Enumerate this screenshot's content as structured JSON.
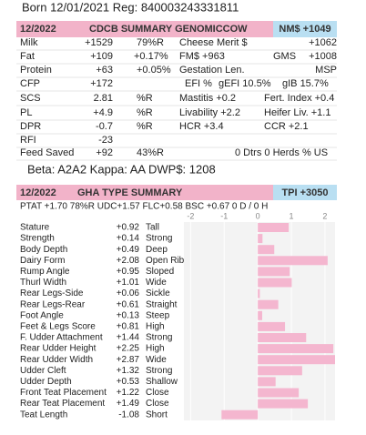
{
  "header": {
    "born": "Born 12/01/2021 Reg: 840003243331811"
  },
  "cdcb": {
    "date": "12/2022",
    "title": "CDCB SUMMARY GENOMICCOW",
    "nm": "NM$ +1049",
    "rows": [
      [
        "Milk",
        "+1529",
        "79%R",
        "Cheese Merit $",
        "+1062"
      ],
      [
        "Fat",
        "+109",
        "+0.17%",
        "FM$ +963",
        "GMS",
        "+1008"
      ],
      [
        "Protein",
        "+63",
        "+0.05%",
        "Gestation Len.",
        "MSP"
      ],
      [
        "CFP",
        "+172",
        "EFI %",
        "gEFI 10.5%",
        "gIB 15.7%"
      ],
      [
        "SCS",
        "2.81",
        "%R",
        "Mastitis +0.2",
        "Fert. Index +0.4"
      ],
      [
        "PL",
        "+4.9",
        "%R",
        "Livability +2.2",
        "Heifer Liv. +1.1"
      ],
      [
        "DPR",
        "-0.7",
        "%R",
        "HCR +3.4",
        "CCR +2.1"
      ],
      [
        "RFI",
        "-23"
      ],
      [
        "Feed Saved",
        "+92",
        "43%R",
        "0 Dtrs  0 Herds  % US"
      ]
    ]
  },
  "genotype": "Beta: A2A2   Kappa: AA   DWP$: 1208",
  "type": {
    "date": "12/2022",
    "title": "GHA TYPE SUMMARY",
    "tpi": "TPI +3050",
    "ptat": "PTAT +1.70  78%R  UDC+1.57  FLC+0.58  BSC +0.67   0 D / 0 H",
    "xlim": [
      -2.2,
      2.3
    ],
    "xticks": [
      -2,
      -1,
      0,
      1,
      2
    ],
    "traits": [
      {
        "name": "Stature",
        "value": 0.92,
        "label": "+0.92",
        "desc": "Tall"
      },
      {
        "name": "Strength",
        "value": 0.14,
        "label": "+0.14",
        "desc": "Strong"
      },
      {
        "name": "Body Depth",
        "value": 0.49,
        "label": "+0.49",
        "desc": "Deep"
      },
      {
        "name": "Dairy Form",
        "value": 2.08,
        "label": "+2.08",
        "desc": "Open Rib"
      },
      {
        "name": "Rump Angle",
        "value": 0.95,
        "label": "+0.95",
        "desc": "Sloped"
      },
      {
        "name": "Thurl Width",
        "value": 1.01,
        "label": "+1.01",
        "desc": "Wide"
      },
      {
        "name": "Rear Legs-Side",
        "value": 0.06,
        "label": "+0.06",
        "desc": "Sickle"
      },
      {
        "name": "Rear Legs-Rear",
        "value": 0.61,
        "label": "+0.61",
        "desc": "Straight"
      },
      {
        "name": "Foot Angle",
        "value": 0.13,
        "label": "+0.13",
        "desc": "Steep"
      },
      {
        "name": "Feet & Legs Score",
        "value": 0.81,
        "label": "+0.81",
        "desc": "High"
      },
      {
        "name": "F. Udder Attachment",
        "value": 1.44,
        "label": "+1.44",
        "desc": "Strong"
      },
      {
        "name": "Rear Udder Height",
        "value": 2.25,
        "label": "+2.25",
        "desc": "High"
      },
      {
        "name": "Rear Udder Width",
        "value": 2.87,
        "label": "+2.87",
        "desc": "Wide"
      },
      {
        "name": "Udder Cleft",
        "value": 1.32,
        "label": "+1.32",
        "desc": "Strong"
      },
      {
        "name": "Udder Depth",
        "value": 0.53,
        "label": "+0.53",
        "desc": "Shallow"
      },
      {
        "name": "Front Teat Placement",
        "value": 1.22,
        "label": "+1.22",
        "desc": "Close"
      },
      {
        "name": "Rear Teat Placement",
        "value": 1.49,
        "label": "+1.49",
        "desc": "Close"
      },
      {
        "name": "Teat Length",
        "value": -1.08,
        "label": "-1.08",
        "desc": "Short"
      }
    ]
  }
}
